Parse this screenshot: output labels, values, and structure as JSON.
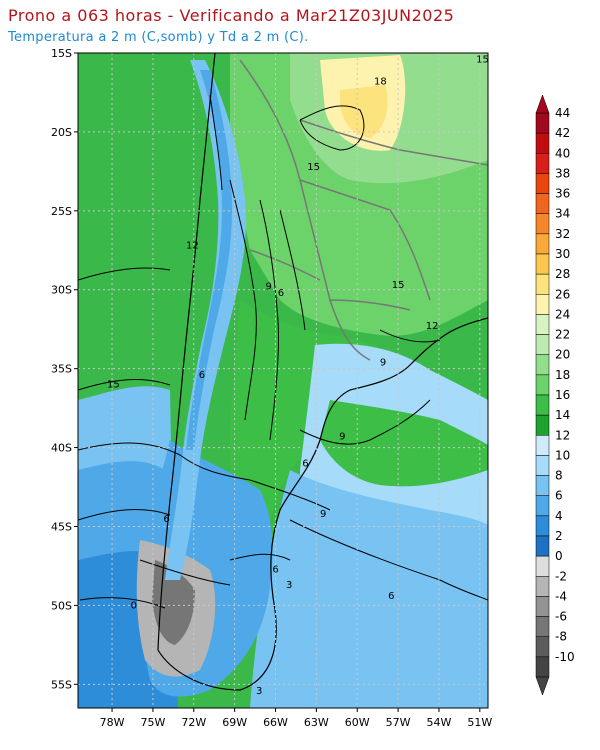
{
  "header": {
    "title": "Prono a 063 horas - Verificando a Mar21Z03JUN2025",
    "subtitle": "Temperatura a 2 m (C,somb) y Td a 2 m (C)."
  },
  "map": {
    "lat_ticks": [
      "15S",
      "20S",
      "25S",
      "30S",
      "35S",
      "40S",
      "45S",
      "50S",
      "55S"
    ],
    "lon_ticks": [
      "78W",
      "75W",
      "72W",
      "69W",
      "66W",
      "63W",
      "60W",
      "57W",
      "54W",
      "51W"
    ],
    "contour_labels": [
      {
        "text": "15",
        "lon": -50.8,
        "lat": -15.6
      },
      {
        "text": "18",
        "lon": -58.3,
        "lat": -17.0
      },
      {
        "text": "15",
        "lon": -63.2,
        "lat": -22.4
      },
      {
        "text": "12",
        "lon": -72.1,
        "lat": -27.4
      },
      {
        "text": "9",
        "lon": -66.5,
        "lat": -30.0
      },
      {
        "text": "6",
        "lon": -65.6,
        "lat": -30.4
      },
      {
        "text": "15",
        "lon": -57.0,
        "lat": -29.9
      },
      {
        "text": "12",
        "lon": -54.5,
        "lat": -32.5
      },
      {
        "text": "9",
        "lon": -58.1,
        "lat": -34.8
      },
      {
        "text": "15",
        "lon": -77.9,
        "lat": -36.2
      },
      {
        "text": "6",
        "lon": -71.4,
        "lat": -35.6
      },
      {
        "text": "9",
        "lon": -61.1,
        "lat": -39.5
      },
      {
        "text": "6",
        "lon": -63.8,
        "lat": -41.2
      },
      {
        "text": "9",
        "lon": -62.5,
        "lat": -44.4
      },
      {
        "text": "6",
        "lon": -74.0,
        "lat": -44.7
      },
      {
        "text": "6",
        "lon": -66.0,
        "lat": -47.9
      },
      {
        "text": "3",
        "lon": -65.0,
        "lat": -48.9
      },
      {
        "text": "6",
        "lon": -57.5,
        "lat": -49.6
      },
      {
        "text": "0",
        "lon": -76.4,
        "lat": -50.2
      },
      {
        "text": "3",
        "lon": -67.2,
        "lat": -55.6
      }
    ]
  },
  "colorbar": {
    "labels": [
      "44",
      "42",
      "40",
      "38",
      "36",
      "34",
      "32",
      "30",
      "28",
      "26",
      "24",
      "22",
      "20",
      "18",
      "16",
      "14",
      "12",
      "10",
      "8",
      "6",
      "4",
      "2",
      "0",
      "-2",
      "-4",
      "-6",
      "-8",
      "-10"
    ],
    "colors": [
      "#a3091e",
      "#c10d12",
      "#d8201b",
      "#e8450f",
      "#f0661e",
      "#f5872a",
      "#f9a93a",
      "#fbc84f",
      "#fce37e",
      "#fdf2ae",
      "#d7f3c2",
      "#bdeab0",
      "#93de8e",
      "#6cd26a",
      "#3dbe47",
      "#1fa32f",
      "#cfeafb",
      "#a6dbfa",
      "#78c3f2",
      "#4fa8e8",
      "#2d8dd8",
      "#1f72c2",
      "#dedede",
      "#b5b5b5",
      "#939393",
      "#767676",
      "#5c5c5c",
      "#444444"
    ]
  }
}
